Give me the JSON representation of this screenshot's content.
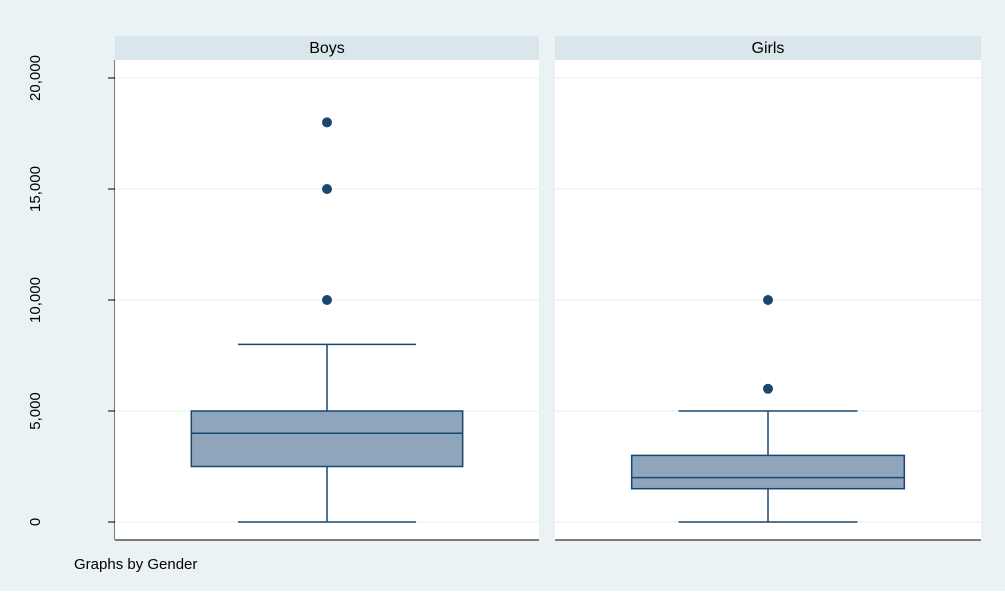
{
  "chart_data": {
    "type": "boxplot",
    "title": "",
    "xlabel": "",
    "ylabel": "",
    "ylim": [
      0,
      20000
    ],
    "yticks": [
      0,
      5000,
      10000,
      15000,
      20000
    ],
    "ytick_labels": [
      "0",
      "5,000",
      "10,000",
      "15,000",
      "20,000"
    ],
    "grid": true,
    "note": "Graphs by Gender",
    "panels": [
      {
        "name": "Boys",
        "whisker_low": 0,
        "q1": 2500,
        "median": 4000,
        "q3": 5000,
        "whisker_high": 8000,
        "outliers": [
          10000,
          15000,
          18000
        ]
      },
      {
        "name": "Girls",
        "whisker_low": 0,
        "q1": 1500,
        "median": 2000,
        "q3": 3000,
        "whisker_high": 5000,
        "outliers": [
          6000,
          10000
        ]
      }
    ],
    "colors": {
      "outer_background": "#eaf2f3",
      "panel_header": "#d9e6eb",
      "plot_background": "#ffffff",
      "grid": "#eaf2f3",
      "box_fill": "#8ea5bb",
      "box_stroke": "#1a476f",
      "marker": "#1a476f",
      "axis": "#000000"
    }
  }
}
